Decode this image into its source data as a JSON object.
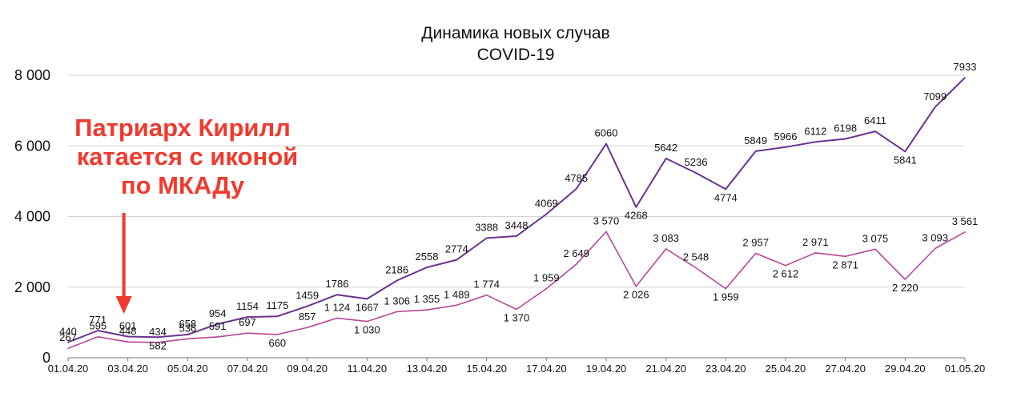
{
  "chart_data": {
    "type": "line",
    "title": [
      "Динамика новых случав",
      "COVID-19"
    ],
    "xlabel": "",
    "ylabel": "",
    "ylim": [
      0,
      8000
    ],
    "yticks": [
      0,
      2000,
      4000,
      6000,
      8000
    ],
    "ytick_labels": [
      "0",
      "2 000",
      "4 000",
      "6 000",
      "8 000"
    ],
    "grid": true,
    "x": [
      "01.04.20",
      "02.04.20",
      "03.04.20",
      "04.04.20",
      "05.04.20",
      "06.04.20",
      "07.04.20",
      "08.04.20",
      "09.04.20",
      "10.04.20",
      "11.04.20",
      "12.04.20",
      "13.04.20",
      "14.04.20",
      "15.04.20",
      "16.04.20",
      "17.04.20",
      "18.04.20",
      "19.04.20",
      "20.04.20",
      "21.04.20",
      "22.04.20",
      "23.04.20",
      "24.04.20",
      "25.04.20",
      "26.04.20",
      "27.04.20",
      "28.04.20",
      "29.04.20",
      "30.04.20",
      "01.05.20"
    ],
    "xtick_labels": [
      "01.04.20",
      "03.04.20",
      "05.04.20",
      "07.04.20",
      "09.04.20",
      "11.04.20",
      "13.04.20",
      "15.04.20",
      "17.04.20",
      "19.04.20",
      "21.04.20",
      "23.04.20",
      "25.04.20",
      "27.04.20",
      "29.04.20",
      "01.05.20"
    ],
    "series": [
      {
        "color": "#6b3391",
        "values": [
          440,
          771,
          601,
          582,
          658,
          954,
          1154,
          1175,
          1459,
          1786,
          1667,
          2186,
          2558,
          2774,
          3388,
          3448,
          4069,
          4785,
          6060,
          4268,
          5642,
          5236,
          4774,
          5849,
          5966,
          6112,
          6198,
          6411,
          5841,
          7099,
          7933
        ],
        "labels": [
          "440",
          "771",
          "601",
          "582",
          "658",
          "954",
          "1154",
          "1175",
          "1459",
          "1786",
          "1667",
          "2186",
          "2558",
          "2774",
          "3388",
          "3448",
          "4069",
          "4785",
          "6060",
          "4268",
          "5642",
          "5236",
          "4774",
          "5849",
          "5966",
          "6112",
          "6198",
          "6411",
          "5841",
          "7099",
          "7933"
        ]
      },
      {
        "color": "#b7479a",
        "values": [
          267,
          595,
          448,
          434,
          536,
          591,
          697,
          660,
          857,
          1124,
          1030,
          1306,
          1355,
          1489,
          1774,
          1370,
          1959,
          2649,
          3570,
          2026,
          3083,
          2548,
          1959,
          2957,
          2612,
          2971,
          2871,
          3075,
          2220,
          3093,
          3561
        ],
        "labels": [
          "267",
          "595",
          "448",
          "434",
          "536",
          "591",
          "697",
          "660",
          "857",
          "1 124",
          "1 030",
          "1 306",
          "1 355",
          "1 489",
          "1 774",
          "1 370",
          "1 959",
          "2 649",
          "3 570",
          "2 026",
          "3 083",
          "2 548",
          "1 959",
          "2 957",
          "2 612",
          "2 971",
          "2 871",
          "3 075",
          "2 220",
          "3 093",
          "3 561"
        ]
      }
    ],
    "annotation": {
      "lines": [
        "Патриарх Кирилл",
        "катается с иконой",
        "по МКАДу"
      ],
      "color": "#f03a2e",
      "points_to": "03.04.20"
    }
  }
}
